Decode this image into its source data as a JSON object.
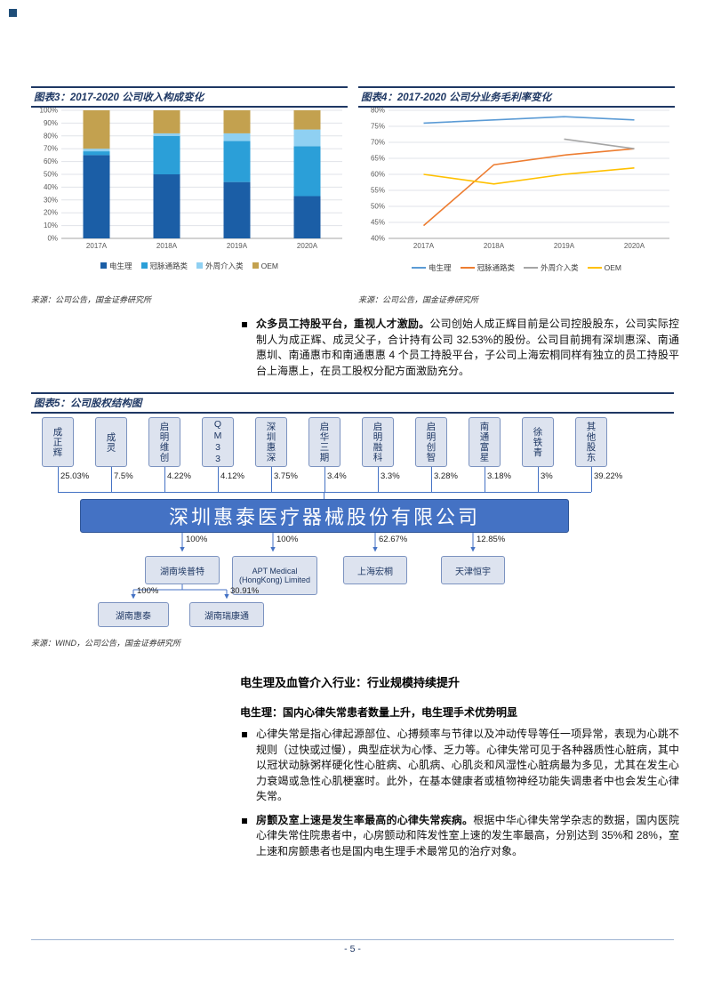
{
  "page": {
    "footer": "- 5 -"
  },
  "fig3": {
    "title": "图表3：2017-2020 公司收入构成变化",
    "source": "来源：公司公告，国金证券研究所"
  },
  "fig4": {
    "title": "图表4：2017-2020 公司分业务毛利率变化",
    "source": "来源：公司公告，国金证券研究所"
  },
  "fig5": {
    "title": "图表5：公司股权结构图",
    "source": "来源：WIND，公司公告，国金证券研究所"
  },
  "chart_data": [
    {
      "type": "bar",
      "stacked": true,
      "categories": [
        "2017A",
        "2018A",
        "2019A",
        "2020A"
      ],
      "series": [
        {
          "name": "电生理",
          "color": "#1B5EA6",
          "values": [
            65,
            50,
            44,
            33
          ]
        },
        {
          "name": "冠脉通路类",
          "color": "#2B9FD8",
          "values": [
            3,
            30,
            32,
            39
          ]
        },
        {
          "name": "外周介入类",
          "color": "#8FD0F2",
          "values": [
            2,
            2,
            6,
            13
          ]
        },
        {
          "name": "OEM",
          "color": "#C3A14F",
          "values": [
            30,
            18,
            18,
            15
          ]
        }
      ],
      "title": "2017-2020 公司收入构成变化",
      "ylim": [
        0,
        100
      ],
      "ytick_step": 10,
      "yformat": "percent",
      "legend_position": "bottom",
      "grid": true
    },
    {
      "type": "line",
      "categories": [
        "2017A",
        "2018A",
        "2019A",
        "2020A"
      ],
      "series": [
        {
          "name": "电生理",
          "color": "#5B9BD5",
          "values": [
            76,
            77,
            78,
            77
          ]
        },
        {
          "name": "冠脉通路类",
          "color": "#ED7D31",
          "values": [
            44,
            63,
            66,
            68
          ]
        },
        {
          "name": "外周介入类",
          "color": "#A5A5A5",
          "values": [
            null,
            null,
            71,
            68
          ]
        },
        {
          "name": "OEM",
          "color": "#FFC000",
          "values": [
            60,
            57,
            60,
            62
          ]
        }
      ],
      "title": "2017-2020 公司分业务毛利率变化",
      "ylim": [
        40,
        80
      ],
      "ytick_step": 5,
      "yformat": "percent",
      "legend_position": "bottom",
      "grid": true
    }
  ],
  "para_employee": {
    "bold": "众多员工持股平台，重视人才激励。",
    "text": "公司创始人成正辉目前是公司控股股东，公司实际控制人为成正辉、成灵父子，合计持有公司 32.53%的股份。公司目前拥有深圳惠深、南通惠圳、南通惠市和南通惠惠 4 个员工持股平台，子公司上海宏桐同样有独立的员工持股平台上海惠上，在员工股权分配方面激励充分。"
  },
  "org": {
    "company": "深圳惠泰医疗器械股份有限公司",
    "shareholders": [
      {
        "name": "成正辉",
        "pct": "25.03%"
      },
      {
        "name": "成灵",
        "pct": "7.5%"
      },
      {
        "name": "启明维创",
        "pct": "4.22%"
      },
      {
        "name": "QM33",
        "pct": "4.12%"
      },
      {
        "name": "深圳惠深",
        "pct": "3.75%"
      },
      {
        "name": "启华三期",
        "pct": "3.4%"
      },
      {
        "name": "启明融科",
        "pct": "3.3%"
      },
      {
        "name": "启明创智",
        "pct": "3.28%"
      },
      {
        "name": "南通富星",
        "pct": "3.18%"
      },
      {
        "name": "徐铁青",
        "pct": "3%"
      },
      {
        "name": "其他股东",
        "pct": "39.22%"
      }
    ],
    "subsidiaries": [
      {
        "name": "湖南埃普特",
        "pct": "100%"
      },
      {
        "name": "APT Medical (HongKong) Limited",
        "pct": "100%"
      },
      {
        "name": "上海宏桐",
        "pct": "62.67%"
      },
      {
        "name": "天津恒宇",
        "pct": "12.85%"
      }
    ],
    "children": [
      {
        "name": "湖南惠泰",
        "pct": "100%"
      },
      {
        "name": "湖南瑞康通",
        "pct": "30.91%"
      }
    ]
  },
  "section": {
    "heading": "电生理及血管介入行业：行业规模持续提升",
    "subheading": "电生理：国内心律失常患者数量上升，电生理手术优势明显",
    "bullet1": "心律失常是指心律起源部位、心搏频率与节律以及冲动传导等任一项异常，表现为心跳不规则（过快或过慢），典型症状为心悸、乏力等。心律失常可见于各种器质性心脏病，其中以冠状动脉粥样硬化性心脏病、心肌病、心肌炎和风湿性心脏病最为多见，尤其在发生心力衰竭或急性心肌梗塞时。此外，在基本健康者或植物神经功能失调患者中也会发生心律失常。",
    "bullet2_bold": "房颤及室上速是发生率最高的心律失常疾病。",
    "bullet2_text": "根据中华心律失常学杂志的数据，国内医院心律失常住院患者中，心房颤动和阵发性室上速的发生率最高，分别达到 35%和 28%，室上速和房颤患者也是国内电生理手术最常见的治疗对象。"
  }
}
